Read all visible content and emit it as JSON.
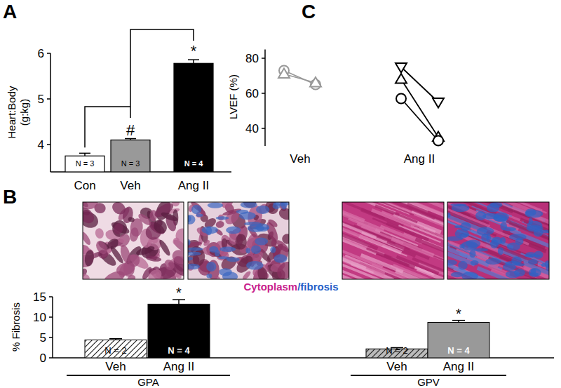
{
  "chart_data": [
    {
      "type": "bar",
      "panel": "A",
      "y_label": "Heart:Body (g:kg)",
      "categories": [
        "Con",
        "Veh",
        "Ang II"
      ],
      "values": [
        3.75,
        4.1,
        5.78
      ],
      "errors": [
        0.06,
        0.03,
        0.08
      ],
      "colors": [
        "#ffffff",
        "#999999",
        "#000000"
      ],
      "n_labels": [
        "N = 3",
        "N = 3",
        "N = 4"
      ],
      "annotations": [
        null,
        "#",
        "*"
      ],
      "ylim": [
        3.4,
        6
      ],
      "yticks": [
        4,
        5,
        6
      ]
    },
    {
      "type": "bar",
      "panel": "B",
      "y_label": "% Fibrosis",
      "stain_legend": [
        {
          "label": "Cytoplasm",
          "color": "#c8208c"
        },
        {
          "label": "/fibrosis",
          "color": "#2560c8"
        }
      ],
      "groups": [
        {
          "label": "GPA",
          "categories": [
            "Veh",
            "Ang II"
          ],
          "values": [
            4.4,
            13.2
          ],
          "errors": [
            0.3,
            1.1
          ],
          "colors": [
            "#ffffff",
            "#000000"
          ],
          "n_labels": [
            "N = 2",
            "N = 4"
          ],
          "annotations": [
            null,
            "*"
          ]
        },
        {
          "label": "GPV",
          "categories": [
            "Veh",
            "Ang II"
          ],
          "values": [
            2.2,
            8.7
          ],
          "errors": [
            0.3,
            0.5
          ],
          "colors": [
            "#bbbbbb",
            "#999999"
          ],
          "n_labels": [
            "N = 2",
            "N = 4"
          ],
          "annotations": [
            null,
            "*"
          ]
        }
      ],
      "ylim": [
        0,
        15
      ],
      "yticks": [
        0,
        5,
        10,
        15
      ]
    },
    {
      "type": "line",
      "panel": "C",
      "y_label": "LVEF (%)",
      "categories": [
        "Veh",
        "Ang II"
      ],
      "series": [
        {
          "category": "Veh",
          "marker": "circle",
          "color": "#999999",
          "values": [
            73,
            65
          ]
        },
        {
          "category": "Veh",
          "marker": "triangle",
          "color": "#999999",
          "values": [
            71,
            66
          ]
        },
        {
          "category": "Ang II",
          "marker": "triangle-down",
          "color": "#000000",
          "values": [
            75,
            55
          ]
        },
        {
          "category": "Ang II",
          "marker": "triangle",
          "color": "#000000",
          "values": [
            68,
            35
          ]
        },
        {
          "category": "Ang II",
          "marker": "circle",
          "color": "#000000",
          "values": [
            57,
            33
          ]
        }
      ],
      "ylim": [
        30,
        85
      ],
      "yticks": [
        40,
        60,
        80
      ]
    }
  ]
}
